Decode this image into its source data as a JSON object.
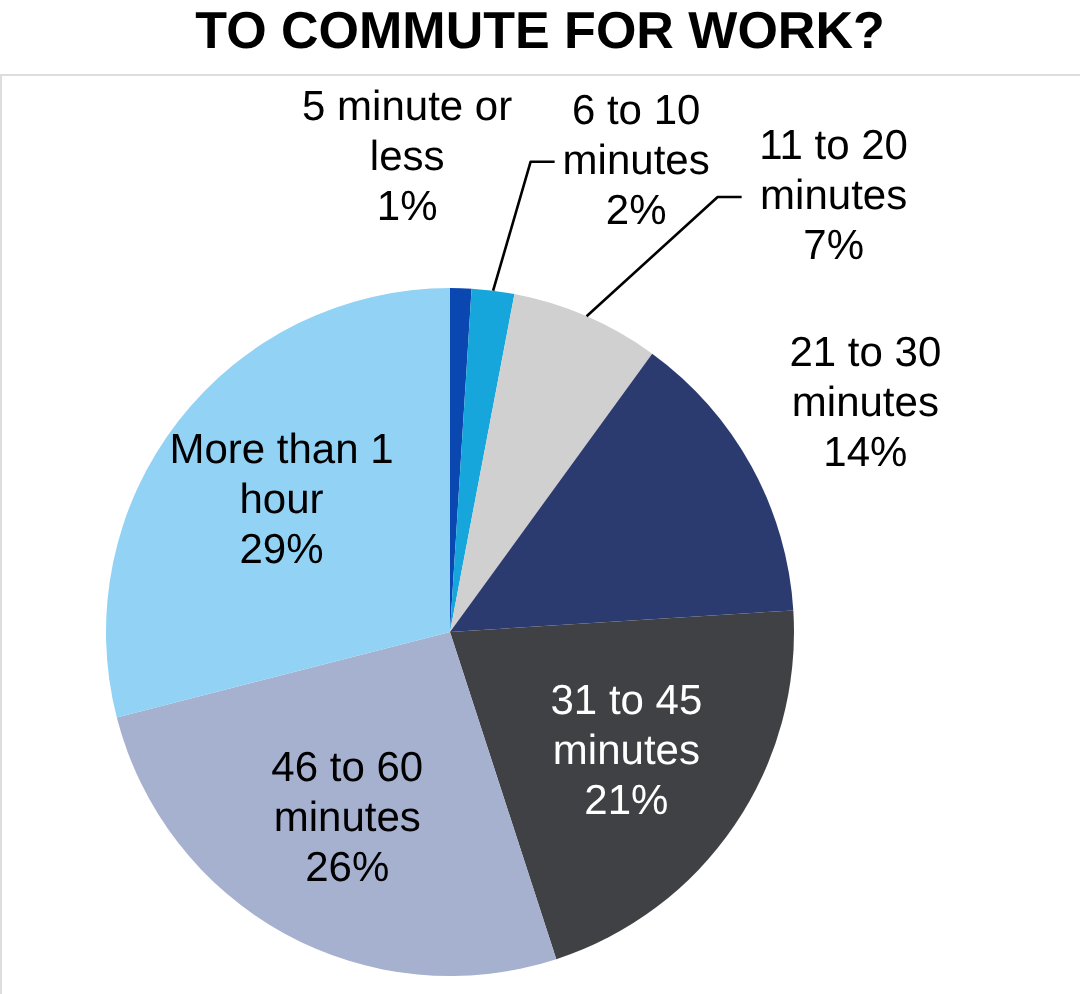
{
  "chart_data": {
    "type": "pie",
    "title": "TO COMMUTE FOR WORK?",
    "categories": [
      "5 minute or less",
      "6 to 10 minutes",
      "11 to 20 minutes",
      "21 to 30 minutes",
      "31 to 45 minutes",
      "46 to 60 minutes",
      "More than 1 hour"
    ],
    "values": [
      1,
      2,
      7,
      14,
      21,
      26,
      29
    ],
    "value_labels": [
      "1%",
      "2%",
      "7%",
      "14%",
      "21%",
      "26%",
      "29%"
    ],
    "colors": [
      "#0a47b0",
      "#17a6db",
      "#d0d0d0",
      "#2b3a6f",
      "#404144",
      "#a6b0cf",
      "#92d3f5"
    ]
  }
}
